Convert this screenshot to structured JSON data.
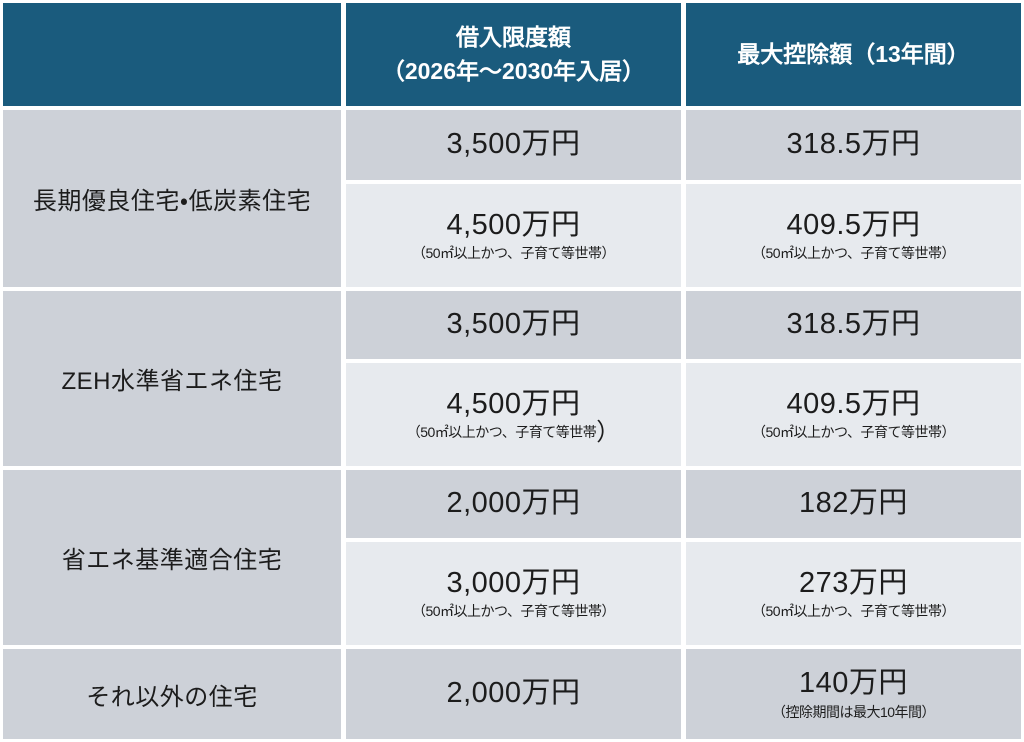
{
  "colors": {
    "header_bg": "#1a5b7d",
    "header_text": "#ffffff",
    "row_dark": "#cdd1d8",
    "row_light": "#e7eaee",
    "body_text": "#1c1c1c",
    "border": "#ffffff"
  },
  "table": {
    "header": {
      "category": "",
      "loan_limit_line1": "借入限度額",
      "loan_limit_line2": "（2026年〜2030年入居）",
      "max_deduction": "最大控除額（13年間）"
    },
    "groups": [
      {
        "label": "長期優良住宅・低炭素住宅",
        "rows": [
          {
            "loan": "3,500万円",
            "deduction": "318.5万円"
          },
          {
            "loan": "4,500万円",
            "loan_note": "（50㎡以上かつ、子育て等世帯）",
            "deduction": "409.5万円",
            "deduction_note": "（50㎡以上かつ、子育て等世帯）"
          }
        ]
      },
      {
        "label": "ZEH水準省エネ住宅",
        "rows": [
          {
            "loan": "3,500万円",
            "deduction": "318.5万円"
          },
          {
            "loan": "4,500万円",
            "loan_note": "（50㎡以上かつ、子育て等世帯",
            "loan_note_suffix": "）",
            "deduction": "409.5万円",
            "deduction_note": "（50㎡以上かつ、子育て等世帯）"
          }
        ]
      },
      {
        "label": "省エネ基準適合住宅",
        "rows": [
          {
            "loan": "2,000万円",
            "deduction": "182万円"
          },
          {
            "loan": "3,000万円",
            "loan_note": "（50㎡以上かつ、子育て等世帯）",
            "deduction": "273万円",
            "deduction_note": "（50㎡以上かつ、子育て等世帯）"
          }
        ]
      },
      {
        "label": "それ以外の住宅",
        "rows": [
          {
            "loan": "2,000万円",
            "deduction": "140万円",
            "deduction_note": "（控除期間は最大10年間）"
          }
        ]
      }
    ]
  },
  "chart_data": {
    "type": "table",
    "columns": [
      "",
      "借入限度額（2026年〜2030年入居）",
      "最大控除額（13年間）"
    ],
    "rows": [
      [
        "長期優良住宅・低炭素住宅",
        "3,500万円",
        "318.5万円"
      ],
      [
        "長期優良住宅・低炭素住宅 （50㎡以上かつ、子育て等世帯）",
        "4,500万円",
        "409.5万円"
      ],
      [
        "ZEH水準省エネ住宅",
        "3,500万円",
        "318.5万円"
      ],
      [
        "ZEH水準省エネ住宅 （50㎡以上かつ、子育て等世帯）",
        "4,500万円",
        "409.5万円"
      ],
      [
        "省エネ基準適合住宅",
        "2,000万円",
        "182万円"
      ],
      [
        "省エネ基準適合住宅 （50㎡以上かつ、子育て等世帯）",
        "3,000万円",
        "273万円"
      ],
      [
        "それ以外の住宅",
        "2,000万円",
        "140万円（控除期間は最大10年間）"
      ]
    ]
  }
}
